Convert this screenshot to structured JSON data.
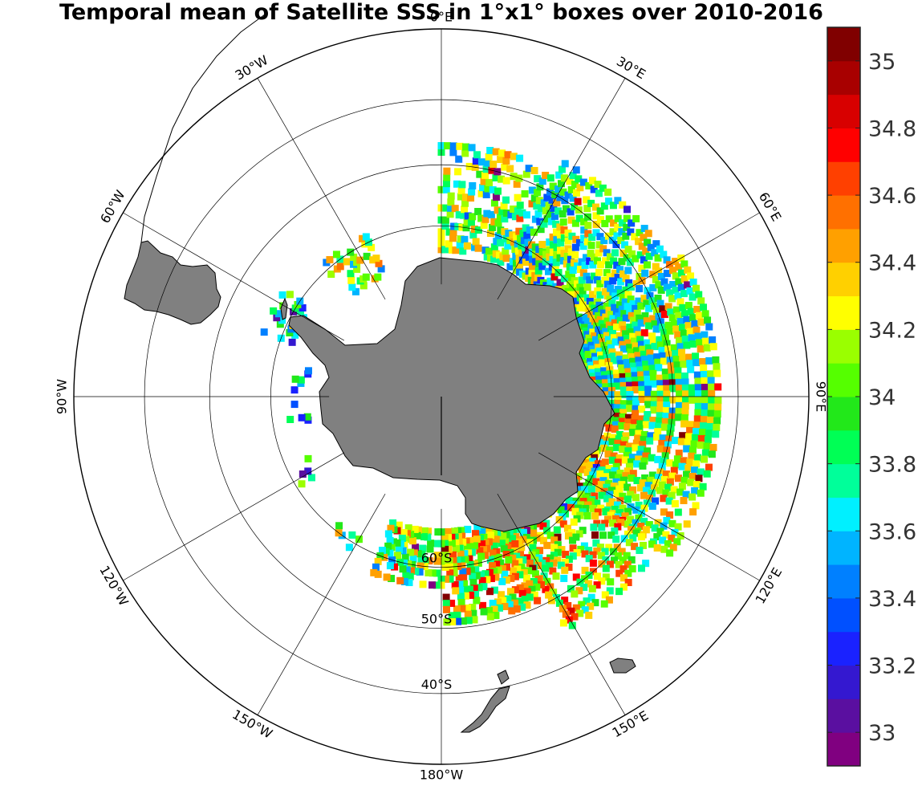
{
  "title": "Temporal mean of Satellite SSS in 1°x1° boxes over 2010-2016",
  "longitude_labels": [
    {
      "lon": 0,
      "text": "0°E"
    },
    {
      "lon": 30,
      "text": "30°E"
    },
    {
      "lon": 60,
      "text": "60°E"
    },
    {
      "lon": 90,
      "text": "90°E"
    },
    {
      "lon": 120,
      "text": "120°E"
    },
    {
      "lon": 150,
      "text": "150°E"
    },
    {
      "lon": 180,
      "text": "180°W"
    },
    {
      "lon": -150,
      "text": "150°W"
    },
    {
      "lon": -120,
      "text": "120°W"
    },
    {
      "lon": -90,
      "text": "90°W"
    },
    {
      "lon": -60,
      "text": "60°W"
    },
    {
      "lon": -30,
      "text": "30°W"
    }
  ],
  "latitude_labels": [
    {
      "lat": -60,
      "text": "60°S"
    },
    {
      "lat": -50,
      "text": "50°S"
    },
    {
      "lat": -40,
      "text": "40°S"
    }
  ],
  "map": {
    "projection": "south polar stereographic",
    "boundary_lat": -30,
    "grid_lats": [
      -60,
      -50,
      -40
    ],
    "land_color": "#808080",
    "colormap": "jet"
  },
  "colorbar": {
    "min": 32.9,
    "max": 35.1,
    "step": 0.1,
    "ticks": [
      "33",
      "33.2",
      "33.4",
      "33.6",
      "33.8",
      "34",
      "34.2",
      "34.4",
      "34.6",
      "34.8",
      "35"
    ],
    "colors": [
      "#800080",
      "#5a0fa0",
      "#3418d0",
      "#1a22ff",
      "#0050ff",
      "#0080ff",
      "#00b4ff",
      "#00f0ff",
      "#00ff9a",
      "#00ff55",
      "#22e81a",
      "#55ff00",
      "#9aff00",
      "#ffff00",
      "#ffd000",
      "#ffa000",
      "#ff7000",
      "#ff4000",
      "#ff0000",
      "#d80000",
      "#a80000",
      "#800000"
    ]
  }
}
